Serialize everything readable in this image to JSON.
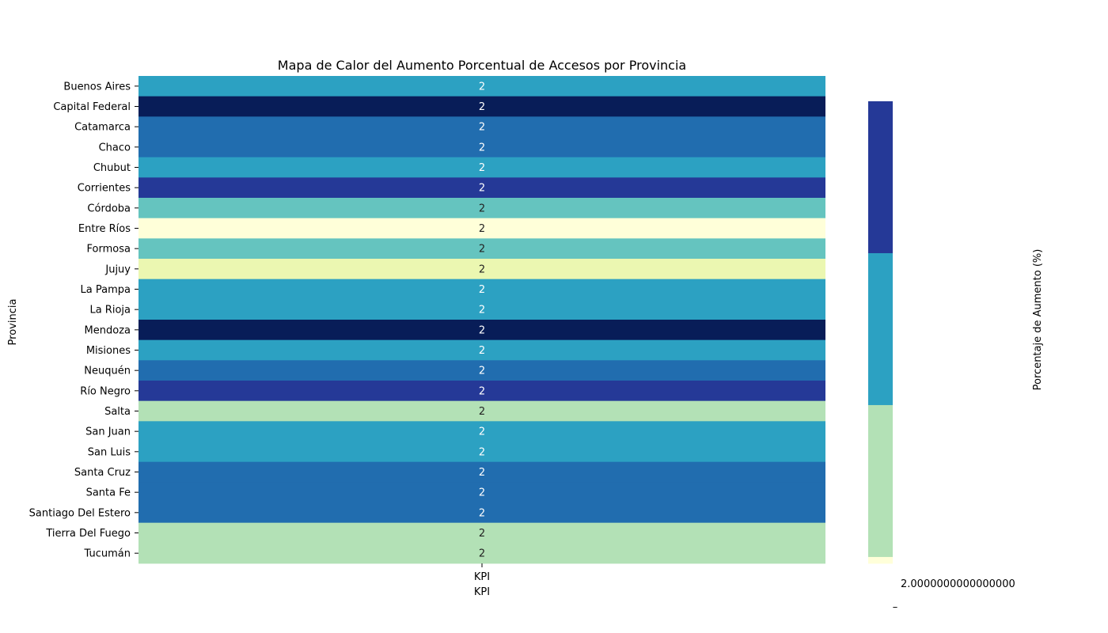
{
  "chart_data": {
    "type": "heatmap",
    "title": "Mapa de Calor del Aumento Porcentual de Accesos por Provincia",
    "ylabel": "Provincia",
    "x_tick_label": "KPI",
    "xlabel": "KPI",
    "columns": [
      "KPI"
    ],
    "rows": [
      {
        "label": "Buenos Aires",
        "value": "2",
        "color": "#2ca1c2",
        "text_color": "#ffffff"
      },
      {
        "label": "Capital Federal",
        "value": "2",
        "color": "#081d58",
        "text_color": "#ffffff"
      },
      {
        "label": "Catamarca",
        "value": "2",
        "color": "#216daf",
        "text_color": "#ffffff"
      },
      {
        "label": "Chaco",
        "value": "2",
        "color": "#216daf",
        "text_color": "#ffffff"
      },
      {
        "label": "Chubut",
        "value": "2",
        "color": "#2ca1c2",
        "text_color": "#ffffff"
      },
      {
        "label": "Corrientes",
        "value": "2",
        "color": "#253997",
        "text_color": "#ffffff"
      },
      {
        "label": "Córdoba",
        "value": "2",
        "color": "#65c4bf",
        "text_color": "#222222"
      },
      {
        "label": "Entre Ríos",
        "value": "2",
        "color": "#ffffd9",
        "text_color": "#222222"
      },
      {
        "label": "Formosa",
        "value": "2",
        "color": "#65c4bf",
        "text_color": "#222222"
      },
      {
        "label": "Jujuy",
        "value": "2",
        "color": "#ebf7b1",
        "text_color": "#222222"
      },
      {
        "label": "La Pampa",
        "value": "2",
        "color": "#2ca1c2",
        "text_color": "#ffffff"
      },
      {
        "label": "La Rioja",
        "value": "2",
        "color": "#2ca1c2",
        "text_color": "#ffffff"
      },
      {
        "label": "Mendoza",
        "value": "2",
        "color": "#081d58",
        "text_color": "#ffffff"
      },
      {
        "label": "Misiones",
        "value": "2",
        "color": "#2ca1c2",
        "text_color": "#ffffff"
      },
      {
        "label": "Neuquén",
        "value": "2",
        "color": "#216daf",
        "text_color": "#ffffff"
      },
      {
        "label": "Río Negro",
        "value": "2",
        "color": "#253997",
        "text_color": "#ffffff"
      },
      {
        "label": "Salta",
        "value": "2",
        "color": "#b3e1b6",
        "text_color": "#222222"
      },
      {
        "label": "San Juan",
        "value": "2",
        "color": "#2ca1c2",
        "text_color": "#ffffff"
      },
      {
        "label": "San Luis",
        "value": "2",
        "color": "#2ca1c2",
        "text_color": "#ffffff"
      },
      {
        "label": "Santa Cruz",
        "value": "2",
        "color": "#216daf",
        "text_color": "#ffffff"
      },
      {
        "label": "Santa Fe",
        "value": "2",
        "color": "#216daf",
        "text_color": "#ffffff"
      },
      {
        "label": "Santiago Del Estero",
        "value": "2",
        "color": "#216daf",
        "text_color": "#ffffff"
      },
      {
        "label": "Tierra Del Fuego",
        "value": "2",
        "color": "#b3e1b6",
        "text_color": "#222222"
      },
      {
        "label": "Tucumán",
        "value": "2",
        "color": "#b3e1b6",
        "text_color": "#222222"
      }
    ],
    "colorbar": {
      "label": "Porcentaje de Aumento (%)",
      "tick_label": "2.0000000000000000",
      "offset_label": "–",
      "bands": [
        {
          "color": "#253997",
          "weight": 0.333
        },
        {
          "color": "#2ca1c2",
          "weight": 0.333
        },
        {
          "color": "#b3e1b6",
          "weight": 0.333
        },
        {
          "color": "#ffffd9",
          "weight": 0.014
        }
      ]
    }
  }
}
